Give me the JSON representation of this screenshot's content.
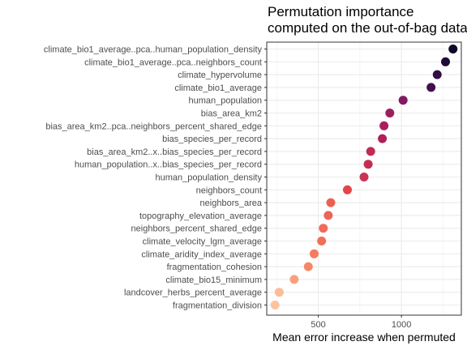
{
  "chart_data": {
    "type": "scatter",
    "title_lines": [
      "Permutation importance",
      "computed on the out-of-bag data"
    ],
    "xlabel": "Mean error increase when permuted",
    "ylabel": "",
    "xlim": [
      190,
      1360
    ],
    "xticks": [
      500,
      1000
    ],
    "xtick_labels": [
      "500",
      "1000"
    ],
    "grid": true,
    "legend": "none",
    "color_scale": "magma",
    "points": [
      {
        "label": "climate_bio1_average..pca..human_population_density",
        "value": 1310
      },
      {
        "label": "climate_bio1_average..pca..neighbors_count",
        "value": 1265
      },
      {
        "label": "climate_hypervolume",
        "value": 1215
      },
      {
        "label": "climate_bio1_average",
        "value": 1178
      },
      {
        "label": "human_population",
        "value": 1010
      },
      {
        "label": "bias_area_km2",
        "value": 930
      },
      {
        "label": "bias_area_km2..pca..neighbors_percent_shared_edge",
        "value": 895
      },
      {
        "label": "bias_species_per_record",
        "value": 885
      },
      {
        "label": "bias_area_km2..x..bias_species_per_record",
        "value": 815
      },
      {
        "label": "human_population..x..bias_species_per_record",
        "value": 800
      },
      {
        "label": "human_population_density",
        "value": 775
      },
      {
        "label": "neighbors_count",
        "value": 675
      },
      {
        "label": "neighbors_area",
        "value": 575
      },
      {
        "label": "topography_elevation_average",
        "value": 560
      },
      {
        "label": "neighbors_percent_shared_edge",
        "value": 530
      },
      {
        "label": "climate_velocity_lgm_average",
        "value": 520
      },
      {
        "label": "climate_aridity_index_average",
        "value": 475
      },
      {
        "label": "fragmentation_cohesion",
        "value": 440
      },
      {
        "label": "climate_bio15_minimum",
        "value": 355
      },
      {
        "label": "landcover_herbs_percent_average",
        "value": 265
      },
      {
        "label": "fragmentation_division",
        "value": 240
      }
    ]
  }
}
